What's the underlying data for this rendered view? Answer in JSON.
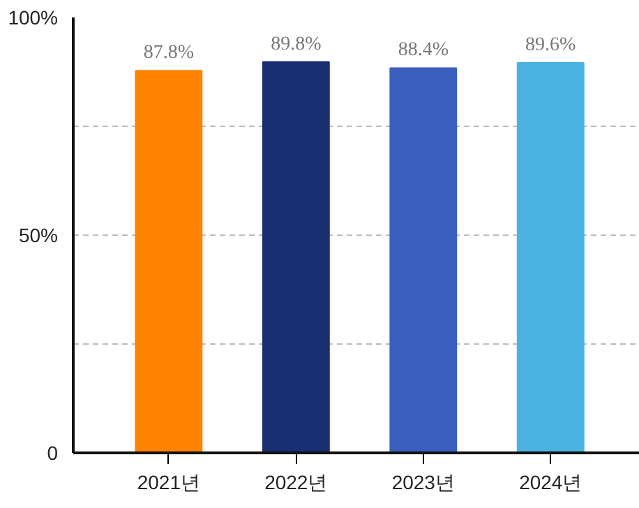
{
  "chart_data": {
    "type": "bar",
    "categories": [
      "2021년",
      "2022년",
      "2023년",
      "2024년"
    ],
    "values": [
      87.8,
      89.8,
      88.4,
      89.6
    ],
    "colors": [
      "#ff8200",
      "#192f72",
      "#3a5fbf",
      "#4ab3e2"
    ],
    "value_labels": [
      "87.8%",
      "89.8%",
      "88.4%",
      "89.6%"
    ],
    "ylim": [
      0,
      100
    ],
    "yticks": [
      {
        "value": 0,
        "label": "0"
      },
      {
        "value": 25,
        "label": null
      },
      {
        "value": 50,
        "label": "50%"
      },
      {
        "value": 75,
        "label": null
      },
      {
        "value": 100,
        "label": "100%"
      }
    ],
    "grid": "y"
  }
}
